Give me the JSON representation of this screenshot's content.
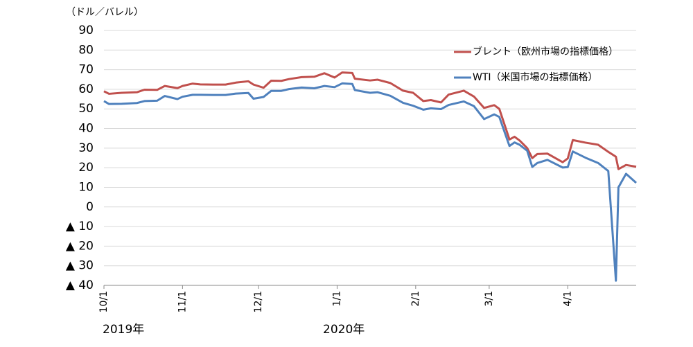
{
  "chart_data": {
    "type": "line",
    "y_label": "（ドル／バレル）",
    "year_labels": [
      "2019年",
      "2020年"
    ],
    "x": [
      "2019-10-01",
      "2019-10-03",
      "2019-10-08",
      "2019-10-14",
      "2019-10-17",
      "2019-10-22",
      "2019-10-25",
      "2019-10-30",
      "2019-11-01",
      "2019-11-05",
      "2019-11-08",
      "2019-11-13",
      "2019-11-18",
      "2019-11-22",
      "2019-11-27",
      "2019-11-29",
      "2019-12-03",
      "2019-12-06",
      "2019-12-10",
      "2019-12-13",
      "2019-12-18",
      "2019-12-23",
      "2019-12-27",
      "2019-12-31",
      "2020-01-03",
      "2020-01-07",
      "2020-01-08",
      "2020-01-14",
      "2020-01-17",
      "2020-01-22",
      "2020-01-27",
      "2020-01-31",
      "2020-02-04",
      "2020-02-07",
      "2020-02-11",
      "2020-02-14",
      "2020-02-20",
      "2020-02-24",
      "2020-02-28",
      "2020-03-03",
      "2020-03-05",
      "2020-03-09",
      "2020-03-11",
      "2020-03-13",
      "2020-03-16",
      "2020-03-18",
      "2020-03-20",
      "2020-03-24",
      "2020-03-30",
      "2020-04-01",
      "2020-04-03",
      "2020-04-08",
      "2020-04-13",
      "2020-04-17",
      "2020-04-20",
      "2020-04-21",
      "2020-04-24",
      "2020-04-28"
    ],
    "series": [
      {
        "name": "ブレント（欧州市場の指標価格）",
        "color": "#c0504d",
        "values": [
          59,
          57.7,
          58.2,
          58.5,
          59.8,
          59.7,
          61.7,
          60.6,
          61.7,
          62.9,
          62.5,
          62.4,
          62.4,
          63.4,
          64.1,
          62.4,
          60.8,
          64.4,
          64.3,
          65.2,
          66.2,
          66.4,
          68.2,
          66,
          68.6,
          68.3,
          65.4,
          64.5,
          64.9,
          63.2,
          59.3,
          58.2,
          54,
          54.5,
          53.3,
          57.3,
          59.3,
          56.3,
          50.5,
          51.9,
          50,
          34.4,
          35.8,
          33.9,
          30,
          24.9,
          27,
          27.2,
          22.8,
          24.7,
          34.1,
          32.8,
          31.7,
          28.1,
          25.6,
          19.3,
          21.4,
          20.5
        ]
      },
      {
        "name": "WTI（米国市場の指標価格）",
        "color": "#4f81bd",
        "values": [
          54,
          52.5,
          52.6,
          53,
          54,
          54.2,
          56.6,
          55,
          56.2,
          57.2,
          57.2,
          57.1,
          57.1,
          57.8,
          58.1,
          55.2,
          56.1,
          59.2,
          59.2,
          60.1,
          60.9,
          60.5,
          61.7,
          61.1,
          63,
          62.7,
          59.6,
          58.2,
          58.5,
          56.7,
          53.1,
          51.6,
          49.6,
          50.3,
          49.9,
          52,
          53.8,
          51.4,
          44.8,
          47.2,
          45.9,
          31.1,
          32.9,
          31.7,
          28.7,
          20.4,
          22.4,
          24,
          20.1,
          20.3,
          28.3,
          25.1,
          22.4,
          18.3,
          -37.6,
          10,
          16.9,
          12.3
        ]
      }
    ],
    "xlim": [
      "2019-10-01",
      "2020-04-28"
    ],
    "xticks": [
      {
        "value": "2019-10-01",
        "label": "10/1"
      },
      {
        "value": "2019-11-01",
        "label": "11/1"
      },
      {
        "value": "2019-12-01",
        "label": "12/1"
      },
      {
        "value": "2020-01-01",
        "label": "1/1"
      },
      {
        "value": "2020-02-01",
        "label": "2/1"
      },
      {
        "value": "2020-03-01",
        "label": "3/1"
      },
      {
        "value": "2020-04-01",
        "label": "4/1"
      }
    ],
    "ylim": [
      -40,
      90
    ],
    "yticks": [
      {
        "value": -40,
        "label": "▲ 40"
      },
      {
        "value": -30,
        "label": "▲ 30"
      },
      {
        "value": -20,
        "label": "▲ 20"
      },
      {
        "value": -10,
        "label": "▲ 10"
      },
      0,
      10,
      20,
      30,
      40,
      50,
      60,
      70,
      80,
      90
    ],
    "grid": true,
    "legend": "upper right"
  }
}
